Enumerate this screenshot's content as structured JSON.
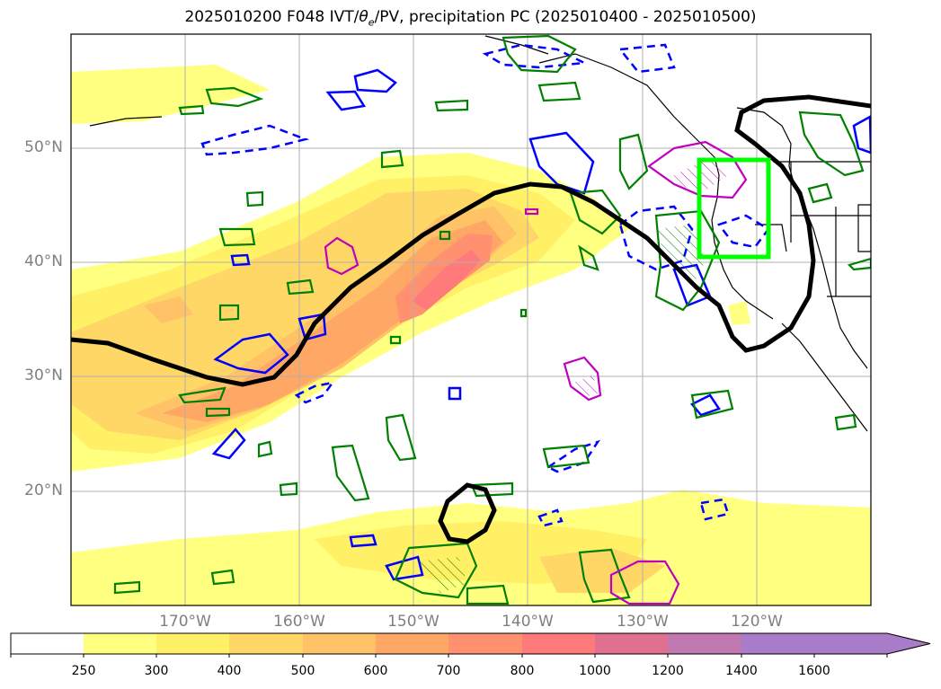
{
  "title": {
    "prefix": "2025010200 F048 IVT/",
    "theta": "θ",
    "sub": "e",
    "suffix": "/PV, precipitation PC (2025010400 - 2025010500)"
  },
  "map": {
    "lat_labels": [
      "50°N",
      "40°N",
      "30°N",
      "20°N"
    ],
    "lon_labels": [
      "170°W",
      "160°W",
      "150°W",
      "140°W",
      "130°W",
      "120°W"
    ],
    "contour_colors": {
      "pv_line": "#000000",
      "theta_e_positive": "#0000ff",
      "theta_e_negative_dashed": "#0000ff",
      "precip_pc": "#008000",
      "magenta_contour": "#c000c0",
      "target_box": "#00ff00"
    }
  },
  "colorbar": {
    "ticks": [
      "250",
      "300",
      "400",
      "500",
      "600",
      "700",
      "800",
      "1000",
      "1200",
      "1400",
      "1600"
    ],
    "colors": [
      "#ffffff",
      "#ffff80",
      "#fff066",
      "#ffd766",
      "#ffc266",
      "#ffa866",
      "#ff9070",
      "#ff7a7a",
      "#e07090",
      "#c078b0",
      "#a87cc8",
      "#a87cc8"
    ],
    "extend": "max"
  }
}
